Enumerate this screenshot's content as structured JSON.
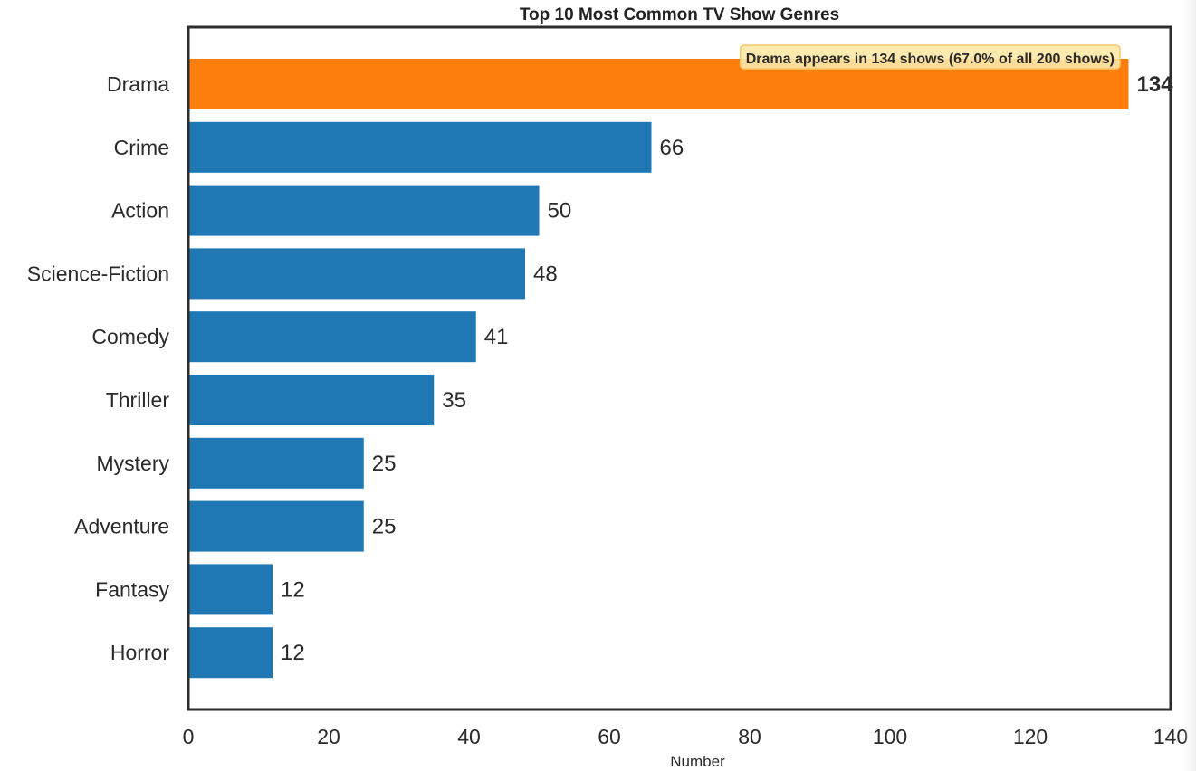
{
  "chart_data": {
    "type": "bar",
    "orientation": "horizontal",
    "title": "Top 10 Most Common TV Show Genres",
    "xlabel": "Number",
    "ylabel": "",
    "xlim": [
      0,
      140
    ],
    "x_ticks": [
      0,
      20,
      40,
      60,
      80,
      100,
      120,
      140
    ],
    "categories": [
      "Drama",
      "Crime",
      "Action",
      "Science-Fiction",
      "Comedy",
      "Thriller",
      "Mystery",
      "Adventure",
      "Fantasy",
      "Horror"
    ],
    "values": [
      134,
      66,
      50,
      48,
      41,
      35,
      25,
      25,
      12,
      12
    ],
    "highlight": {
      "category": "Drama",
      "color": "#ff7f0e"
    },
    "bar_color": "#1f77b4",
    "annotation": "Drama appears in 134 shows (67.0% of all 200 shows)",
    "grid": false
  }
}
